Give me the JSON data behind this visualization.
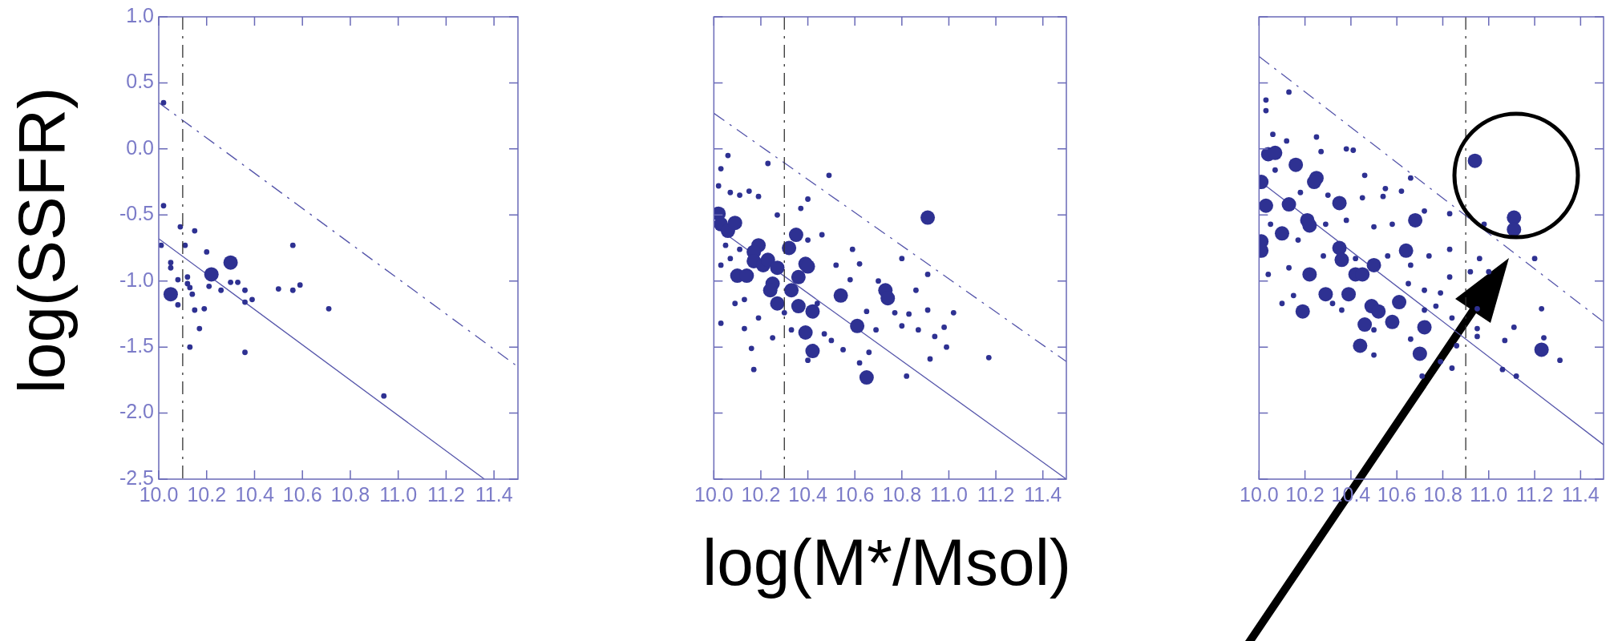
{
  "chart_data": [
    {
      "type": "scatter",
      "ylabel": "log(SSFR)",
      "xlim": [
        10,
        11.5
      ],
      "xticks": [
        {
          "value": 10,
          "label": "10.0"
        },
        {
          "value": 10.2,
          "label": "10.2"
        },
        {
          "value": 10.4,
          "label": "10.4"
        },
        {
          "value": 10.6,
          "label": "10.6"
        },
        {
          "value": 10.8,
          "label": "10.8"
        },
        {
          "value": 11,
          "label": "11.0"
        },
        {
          "value": 11.2,
          "label": "11.2"
        },
        {
          "value": 11.4,
          "label": "11.4"
        }
      ],
      "ylim": [
        -2.5,
        1
      ],
      "yticks": [
        {
          "value": 1,
          "label": "1.0"
        },
        {
          "value": 0.5,
          "label": "0.5"
        },
        {
          "value": 0,
          "label": "0.0"
        },
        {
          "value": -0.5,
          "label": "-0.5"
        },
        {
          "value": -1,
          "label": "-1.0"
        },
        {
          "value": -1.5,
          "label": "-1.5"
        },
        {
          "value": -2,
          "label": "-2.0"
        },
        {
          "value": -2.5,
          "label": "-2.5"
        }
      ],
      "marker": "circle",
      "ref_lines": [
        {
          "axis": "x",
          "value": 10.1,
          "color": "#333333",
          "line_style": "dashed"
        }
      ],
      "series": [
        {
          "color": "#2e3192",
          "x": [
            10.02,
            10.02,
            10.01,
            10.09,
            10.15,
            10.11,
            10.2,
            10.05,
            10.05,
            10.08,
            10.12,
            10.12,
            10.13,
            10.14,
            10.21,
            10.26,
            10.3,
            10.33,
            10.36,
            10.36,
            10.39,
            10.08,
            10.15,
            10.19,
            10.17,
            10.13,
            10.36,
            10.5,
            10.56,
            10.59,
            10.56,
            10.71,
            10.94
          ],
          "values": [
            0.35,
            -0.43,
            -0.73,
            -0.59,
            -0.62,
            -0.73,
            -0.78,
            -0.86,
            -0.9,
            -0.99,
            -0.97,
            -1.02,
            -1.05,
            -1.1,
            -1.04,
            -1.07,
            -1.01,
            -1.01,
            -1.07,
            -1.16,
            -1.14,
            -1.18,
            -1.22,
            -1.21,
            -1.36,
            -1.5,
            -1.54,
            -1.06,
            -1.07,
            -1.03,
            -0.73,
            -1.21,
            -1.87
          ]
        },
        {
          "color": "#2e3192",
          "x": [
            10.05,
            10.22,
            10.3
          ],
          "values": [
            -1.1,
            -0.95,
            -0.86
          ]
        },
        {
          "type": "line",
          "marker": "none",
          "line_style": "solid",
          "color": "#5555aa",
          "x": [
            10,
            11.36
          ],
          "values": [
            -0.68,
            -2.5
          ]
        },
        {
          "type": "line",
          "marker": "none",
          "line_style": "dashed",
          "color": "#5555aa",
          "x": [
            10,
            11.5
          ],
          "values": [
            0.35,
            -1.65
          ]
        }
      ]
    },
    {
      "type": "scatter",
      "xlabel": "log(M*/Msol)",
      "tick_labels": "x",
      "xlim": [
        10,
        11.5
      ],
      "xticks": [
        {
          "value": 10,
          "label": "10.0"
        },
        {
          "value": 10.2,
          "label": "10.2"
        },
        {
          "value": 10.4,
          "label": "10.4"
        },
        {
          "value": 10.6,
          "label": "10.6"
        },
        {
          "value": 10.8,
          "label": "10.8"
        },
        {
          "value": 11,
          "label": "11.0"
        },
        {
          "value": 11.2,
          "label": "11.2"
        },
        {
          "value": 11.4,
          "label": "11.4"
        }
      ],
      "ylim": [
        -2.5,
        1
      ],
      "yticks": [
        1,
        0.5,
        0,
        -0.5,
        -1,
        -1.5,
        -2,
        -2.5
      ],
      "marker": "circle",
      "ref_lines": [
        {
          "axis": "x",
          "value": 10.3,
          "color": "#333333",
          "line_style": "dashed"
        }
      ],
      "series": [
        {
          "color": "#2e3192",
          "x": [
            10.06,
            10.03,
            10.23,
            10.49,
            10.4,
            10.02,
            10.07,
            10.11,
            10.15,
            10.19,
            10.37,
            10.27,
            10.46,
            10.05,
            10.03,
            10.07,
            10.11,
            10.13,
            10.09,
            10.03,
            10.13,
            10.16,
            10.17,
            10.25,
            10.19,
            10.3,
            10.33,
            10.4,
            10.47,
            10.5,
            10.55,
            10.59,
            10.62,
            10.58,
            10.52,
            10.65,
            10.69,
            10.66,
            10.62,
            10.7,
            10.8,
            10.86,
            10.77,
            10.83,
            10.8,
            10.87,
            10.91,
            10.91,
            10.94,
            10.98,
            10.99,
            11.02,
            10.92,
            10.82,
            11.17,
            10.44,
            10.4
          ],
          "values": [
            -0.05,
            -0.15,
            -0.11,
            -0.2,
            -0.38,
            -0.28,
            -0.33,
            -0.35,
            -0.32,
            -0.36,
            -0.45,
            -0.5,
            -0.65,
            -0.73,
            -0.88,
            -0.83,
            -0.76,
            -1.14,
            -1.17,
            -1.32,
            -1.36,
            -1.51,
            -1.67,
            -1.43,
            -1.28,
            -1.24,
            -1.37,
            -1.6,
            -1.4,
            -1.45,
            -1.52,
            -0.76,
            -0.87,
            -0.99,
            -0.88,
            -1.23,
            -1.37,
            -1.54,
            -1.62,
            -1,
            -0.83,
            -1.07,
            -1.24,
            -1.25,
            -1.34,
            -1.37,
            -0.95,
            -1.22,
            -1.42,
            -1.35,
            -1.5,
            -1.24,
            -1.59,
            -1.72,
            -1.58,
            -1.17,
            -0.69
          ]
        },
        {
          "color": "#2e3192",
          "x": [
            10.02,
            10.03,
            10.06,
            10.09,
            10.19,
            10.17,
            10.17,
            10.21,
            10.23,
            10.27,
            10.1,
            10.14,
            10.25,
            10.24,
            10.27,
            10.32,
            10.35,
            10.39,
            10.4,
            10.36,
            10.33,
            10.36,
            10.42,
            10.39,
            10.42,
            10.54,
            10.61,
            10.65,
            10.73,
            10.74,
            10.91
          ],
          "values": [
            -0.49,
            -0.57,
            -0.62,
            -0.56,
            -0.73,
            -0.78,
            -0.85,
            -0.88,
            -0.84,
            -0.9,
            -0.96,
            -0.96,
            -1.02,
            -1.07,
            -1.17,
            -0.75,
            -0.65,
            -0.87,
            -0.89,
            -0.97,
            -1.07,
            -1.19,
            -1.23,
            -1.39,
            -1.53,
            -1.11,
            -1.34,
            -1.73,
            -1.07,
            -1.13,
            -0.52
          ]
        },
        {
          "type": "line",
          "marker": "none",
          "line_style": "solid",
          "color": "#5555aa",
          "x": [
            10,
            11.5
          ],
          "values": [
            -0.58,
            -2.5
          ]
        },
        {
          "type": "line",
          "marker": "none",
          "line_style": "dashed",
          "color": "#5555aa",
          "x": [
            10,
            11.5
          ],
          "values": [
            0.27,
            -1.61
          ]
        }
      ]
    },
    {
      "type": "scatter",
      "tick_labels": "x",
      "xlim": [
        10,
        11.5
      ],
      "xticks": [
        {
          "value": 10,
          "label": "10.0"
        },
        {
          "value": 10.2,
          "label": "10.2"
        },
        {
          "value": 10.4,
          "label": "10.4"
        },
        {
          "value": 10.6,
          "label": "10.6"
        },
        {
          "value": 10.8,
          "label": "10.8"
        },
        {
          "value": 11,
          "label": "11.0"
        },
        {
          "value": 11.2,
          "label": "11.2"
        },
        {
          "value": 11.4,
          "label": "11.4"
        }
      ],
      "ylim": [
        -2.5,
        1
      ],
      "yticks": [
        1,
        0.5,
        0,
        -0.5,
        -1,
        -1.5,
        -2,
        -2.5
      ],
      "marker": "circle",
      "ref_lines": [
        {
          "axis": "x",
          "value": 10.9,
          "color": "#333333",
          "line_style": "dashed"
        }
      ],
      "series": [
        {
          "color": "#2e3192",
          "x": [
            10.13,
            10.03,
            10.03,
            10.06,
            10.12,
            10.25,
            10.27,
            10.38,
            10.41,
            10.46,
            10.55,
            10.62,
            10.66,
            10.45,
            10.54,
            10.3,
            10.18,
            10.07,
            10.83,
            10.72,
            10.58,
            10.5,
            10.38,
            10.29,
            10.05,
            10.17,
            10.28,
            10.04,
            10.13,
            10.42,
            10.56,
            10.66,
            10.74,
            10.83,
            10.65,
            10.72,
            10.79,
            10.83,
            10.15,
            10.1,
            10.36,
            10.32,
            10.5,
            10.66,
            10.72,
            10.77,
            10.84,
            10.86,
            10.79,
            10.84,
            10.71,
            10.5,
            10.96,
            11,
            10.92,
            10.95,
            10.95,
            10.95,
            11.07,
            11.11,
            11.2,
            11.23,
            11.24,
            11.31,
            11.06,
            11.12,
            10.98
          ],
          "values": [
            0.43,
            0.37,
            0.29,
            0.11,
            0.06,
            0.09,
            -0.02,
            0,
            -0.01,
            -0.2,
            -0.3,
            -0.32,
            -0.22,
            -0.37,
            -0.36,
            -0.35,
            -0.33,
            -0.16,
            -0.49,
            -0.47,
            -0.57,
            -0.59,
            -0.54,
            -0.57,
            -0.57,
            -0.69,
            -0.81,
            -0.95,
            -0.9,
            -0.83,
            -0.81,
            -0.88,
            -0.81,
            -0.76,
            -1.02,
            -1.07,
            -1.09,
            -0.97,
            -1.11,
            -1.17,
            -1.22,
            -1.17,
            -1.37,
            -1.44,
            -1.22,
            -1.19,
            -1.28,
            -1.49,
            -1.61,
            -1.66,
            -1.72,
            -1.56,
            -0.83,
            -0.93,
            -0.93,
            -1.21,
            -1.36,
            -1.42,
            -1.45,
            -1.35,
            -0.83,
            -1.21,
            -1.43,
            -1.6,
            -1.67,
            -1.72,
            -0.57
          ]
        },
        {
          "color": "#2e3192",
          "x": [
            10.04,
            10.07,
            10.16,
            10.01,
            10.25,
            10.24,
            10.03,
            10.13,
            10.35,
            10.21,
            10.22,
            10.1,
            10.68,
            10.01,
            10.01,
            10.35,
            10.36,
            10.64,
            10.5,
            10.22,
            10.42,
            10.45,
            10.29,
            10.39,
            10.19,
            10.49,
            10.52,
            10.61,
            10.58,
            10.46,
            10.72,
            10.44,
            10.7,
            10.94,
            11.11,
            11.11,
            11.23
          ],
          "values": [
            -0.04,
            -0.03,
            -0.12,
            -0.25,
            -0.22,
            -0.25,
            -0.43,
            -0.42,
            -0.41,
            -0.54,
            -0.58,
            -0.64,
            -0.54,
            -0.7,
            -0.77,
            -0.75,
            -0.84,
            -0.77,
            -0.88,
            -0.95,
            -0.95,
            -0.95,
            -1.1,
            -1.1,
            -1.23,
            -1.19,
            -1.23,
            -1.16,
            -1.31,
            -1.33,
            -1.35,
            -1.49,
            -1.55,
            -0.09,
            -0.52,
            -0.61,
            -1.52
          ]
        },
        {
          "type": "line",
          "marker": "none",
          "line_style": "solid",
          "color": "#5555aa",
          "x": [
            10,
            11.5
          ],
          "values": [
            -0.24,
            -2.24
          ]
        },
        {
          "type": "line",
          "marker": "none",
          "line_style": "dashed",
          "color": "#5555aa",
          "x": [
            10,
            11.5
          ],
          "values": [
            0.7,
            -1.31
          ]
        }
      ]
    }
  ]
}
